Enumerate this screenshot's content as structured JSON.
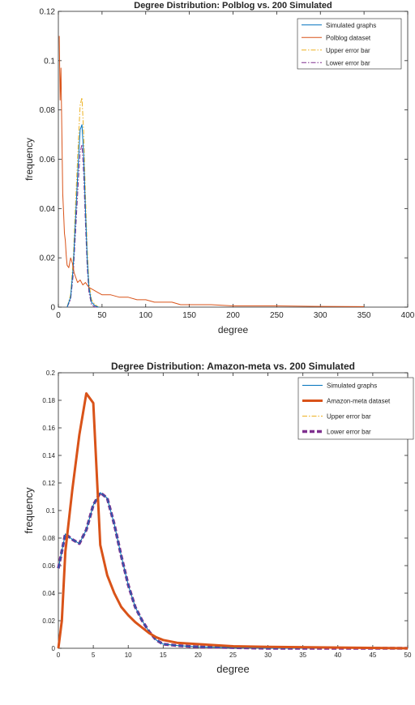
{
  "chart_data": [
    {
      "type": "line",
      "title": "Degree Distribution: Polblog vs. 200 Simulated",
      "xlabel": "degree",
      "ylabel": "frequency",
      "xlim": [
        0,
        400
      ],
      "ylim": [
        0,
        0.12
      ],
      "x_ticks": [
        0,
        50,
        100,
        150,
        200,
        250,
        300,
        350,
        400
      ],
      "y_ticks": [
        0,
        0.02,
        0.04,
        0.06,
        0.08,
        0.1,
        0.12
      ],
      "x_tick_labels": [
        "0",
        "50",
        "100",
        "150",
        "200",
        "250",
        "300",
        "350",
        "400"
      ],
      "y_tick_labels": [
        "0",
        "0.02",
        "0.04",
        "0.06",
        "0.08",
        "0.1",
        "0.12"
      ],
      "grid": false,
      "legend_position": "top-right",
      "series": [
        {
          "name": "Simulated graphs",
          "color": "#0072bd",
          "style": "solid",
          "x": [
            10,
            14,
            17,
            20,
            23,
            25,
            27,
            29,
            31,
            33,
            35,
            38,
            42,
            46
          ],
          "y": [
            0,
            0.004,
            0.016,
            0.038,
            0.06,
            0.072,
            0.074,
            0.062,
            0.04,
            0.02,
            0.008,
            0.002,
            0.0005,
            0
          ]
        },
        {
          "name": "Polblog dataset",
          "color": "#d95319",
          "style": "solid",
          "x": [
            1,
            2,
            3,
            4,
            5,
            6,
            7,
            8,
            9,
            10,
            12,
            14,
            16,
            18,
            20,
            22,
            25,
            28,
            31,
            35,
            40,
            45,
            50,
            60,
            70,
            80,
            90,
            100,
            110,
            120,
            130,
            140,
            150,
            175,
            200,
            250,
            300,
            350
          ],
          "y": [
            0.11,
            0.084,
            0.097,
            0.071,
            0.046,
            0.038,
            0.03,
            0.027,
            0.021,
            0.017,
            0.016,
            0.02,
            0.018,
            0.014,
            0.012,
            0.01,
            0.011,
            0.009,
            0.01,
            0.008,
            0.007,
            0.006,
            0.005,
            0.005,
            0.004,
            0.004,
            0.003,
            0.003,
            0.002,
            0.002,
            0.002,
            0.001,
            0.001,
            0.001,
            0.0005,
            0.0005,
            0.0003,
            0.0002
          ]
        },
        {
          "name": "Upper error bar",
          "color": "#edb120",
          "style": "dashdot",
          "x": [
            10,
            14,
            17,
            20,
            23,
            25,
            27,
            29,
            31,
            33,
            35,
            38,
            42,
            46
          ],
          "y": [
            0,
            0.005,
            0.019,
            0.044,
            0.068,
            0.082,
            0.085,
            0.071,
            0.046,
            0.024,
            0.01,
            0.003,
            0.001,
            0
          ]
        },
        {
          "name": "Lower error bar",
          "color": "#7e2f8e",
          "style": "dashdot",
          "x": [
            10,
            14,
            17,
            20,
            23,
            25,
            27,
            29,
            31,
            33,
            35,
            38,
            42,
            46
          ],
          "y": [
            0,
            0.003,
            0.013,
            0.032,
            0.052,
            0.063,
            0.066,
            0.054,
            0.034,
            0.016,
            0.006,
            0.001,
            0,
            0
          ]
        }
      ]
    },
    {
      "type": "line",
      "title": "Degree Distribution: Amazon-meta vs. 200 Simulated",
      "xlabel": "degree",
      "ylabel": "frequency",
      "xlim": [
        0,
        50
      ],
      "ylim": [
        0,
        0.2
      ],
      "x_ticks": [
        0,
        5,
        10,
        15,
        20,
        25,
        30,
        35,
        40,
        45,
        50
      ],
      "y_ticks": [
        0,
        0.02,
        0.04,
        0.06,
        0.08,
        0.1,
        0.12,
        0.14,
        0.16,
        0.18,
        0.2
      ],
      "x_tick_labels": [
        "0",
        "5",
        "10",
        "15",
        "20",
        "25",
        "30",
        "35",
        "40",
        "45",
        "50"
      ],
      "y_tick_labels": [
        "0",
        "0.02",
        "0.04",
        "0.06",
        "0.08",
        "0.1",
        "0.12",
        "0.14",
        "0.16",
        "0.18",
        "0.2"
      ],
      "grid": false,
      "legend_position": "top-right",
      "series": [
        {
          "name": "Simulated graphs",
          "color": "#0072bd",
          "style": "solid",
          "x": [
            0,
            1,
            2,
            3,
            4,
            5,
            6,
            7,
            8,
            9,
            10,
            11,
            12,
            13,
            14,
            15,
            17,
            20,
            25,
            30,
            40,
            50
          ],
          "y": [
            0.058,
            0.083,
            0.079,
            0.076,
            0.086,
            0.104,
            0.113,
            0.109,
            0.09,
            0.067,
            0.046,
            0.03,
            0.02,
            0.012,
            0.006,
            0.003,
            0.002,
            0.001,
            0.0005,
            0,
            0,
            0
          ]
        },
        {
          "name": "Amazon-meta dataset",
          "color": "#d95319",
          "style": "solid",
          "x": [
            0,
            0.5,
            1,
            2,
            3,
            4,
            5,
            6,
            7,
            8,
            9,
            10,
            11,
            12,
            13,
            14,
            15,
            17,
            20,
            25,
            30,
            40,
            50
          ],
          "y": [
            0,
            0.02,
            0.07,
            0.115,
            0.155,
            0.185,
            0.178,
            0.075,
            0.053,
            0.04,
            0.03,
            0.024,
            0.019,
            0.015,
            0.011,
            0.008,
            0.006,
            0.004,
            0.003,
            0.0015,
            0.001,
            0.0005,
            0
          ]
        },
        {
          "name": "Upper error bar",
          "color": "#edb120",
          "style": "dashdot",
          "x": [
            0,
            1,
            2,
            3,
            4,
            5,
            6,
            7,
            8,
            9,
            10,
            11,
            12,
            13,
            14,
            15,
            17,
            20,
            25,
            30,
            40,
            50
          ],
          "y": [
            0.058,
            0.083,
            0.079,
            0.076,
            0.086,
            0.104,
            0.113,
            0.109,
            0.09,
            0.067,
            0.046,
            0.03,
            0.02,
            0.012,
            0.006,
            0.003,
            0.002,
            0.001,
            0.0005,
            0,
            0,
            0
          ]
        },
        {
          "name": "Lower error bar",
          "color": "#7e2f8e",
          "style": "dashed",
          "x": [
            0,
            1,
            2,
            3,
            4,
            5,
            6,
            7,
            8,
            9,
            10,
            11,
            12,
            13,
            14,
            15,
            17,
            20,
            25,
            30,
            40,
            50
          ],
          "y": [
            0.058,
            0.083,
            0.079,
            0.076,
            0.086,
            0.104,
            0.113,
            0.109,
            0.09,
            0.067,
            0.046,
            0.03,
            0.02,
            0.012,
            0.006,
            0.003,
            0.002,
            0.001,
            0.0005,
            0,
            0,
            0
          ]
        }
      ]
    }
  ]
}
